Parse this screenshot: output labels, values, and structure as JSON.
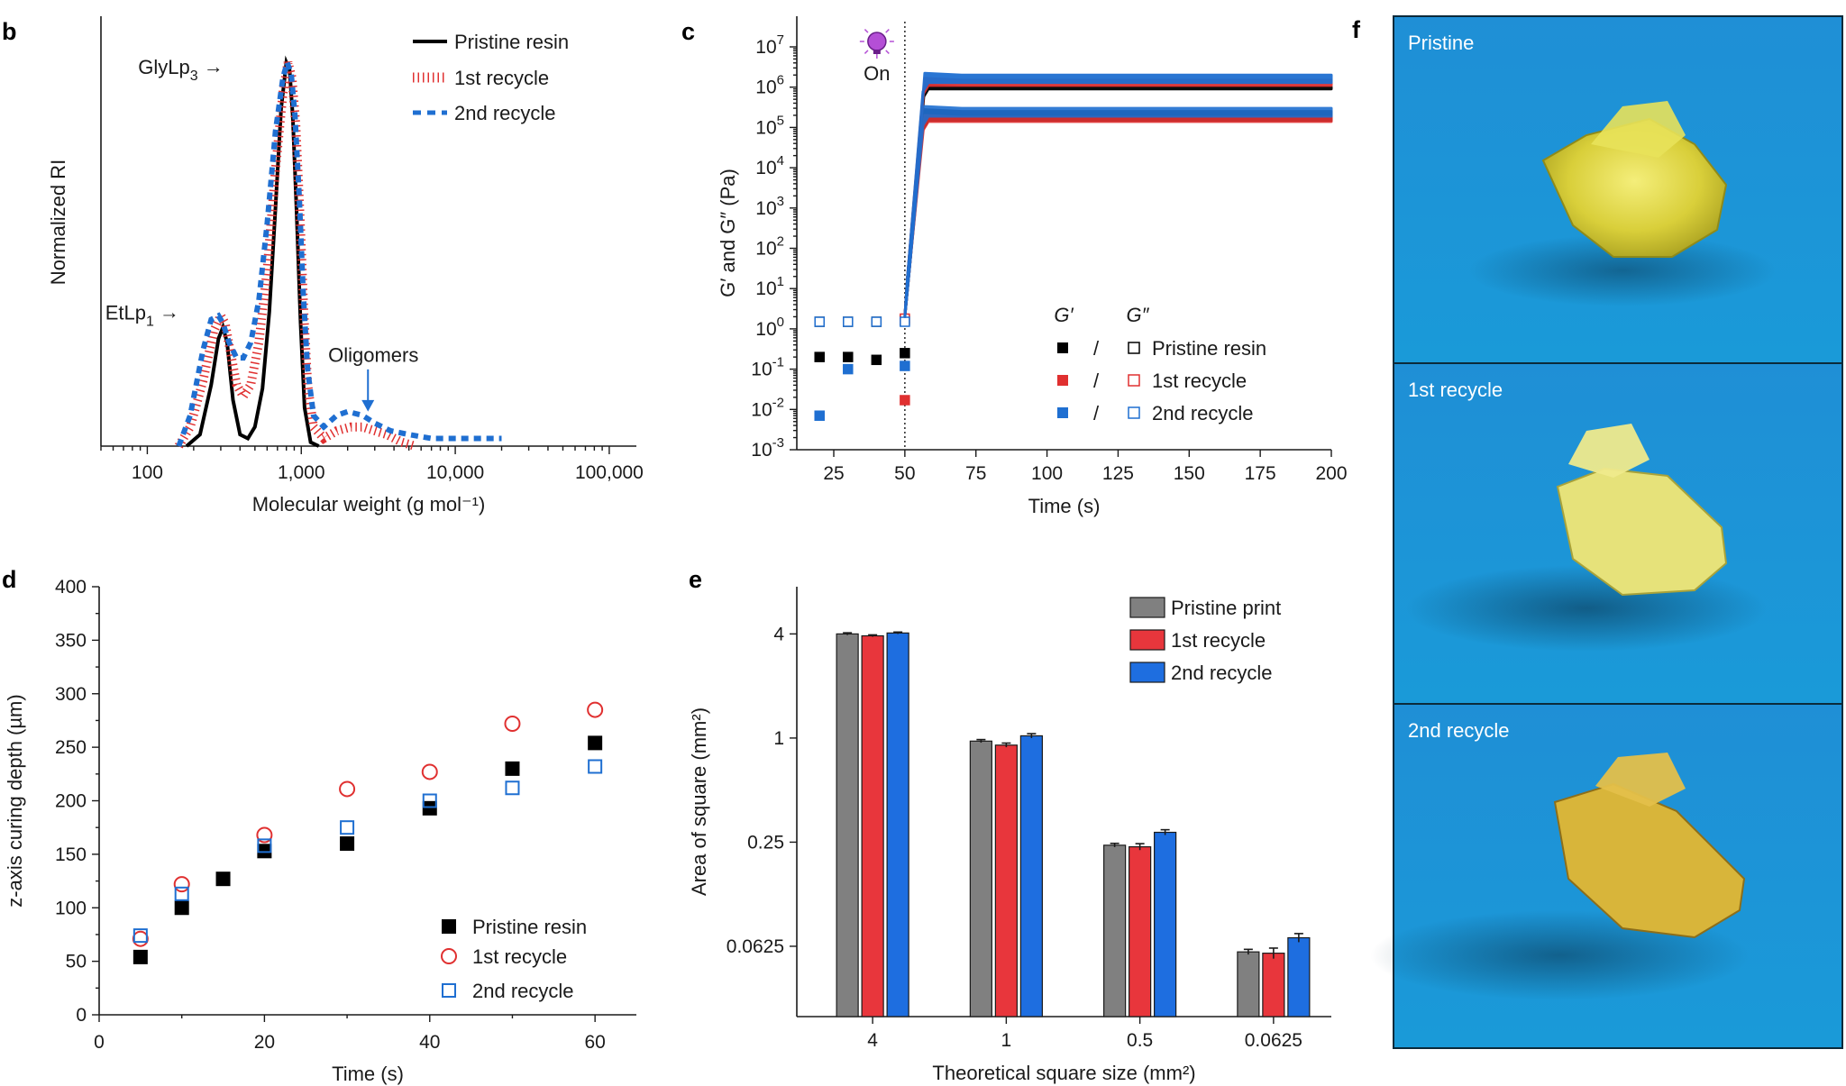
{
  "panels": {
    "b": "b",
    "c": "c",
    "d": "d",
    "e": "e",
    "f": "f"
  },
  "colors": {
    "pristine": "#000000",
    "recycle1": "#e03030",
    "recycle2": "#1f6fd1",
    "bar_gray": "#808080",
    "bar_red": "#e8363c",
    "bar_blue": "#1e6ee0"
  },
  "chart_data": [
    {
      "panel": "b",
      "type": "line",
      "title": "",
      "xlabel": "Molecular weight (g mol⁻¹)",
      "ylabel": "Normalized RI",
      "xscale": "log",
      "xlim": [
        50,
        150000
      ],
      "ylim": [
        0,
        1.05
      ],
      "xticks": [
        "100",
        "1,000",
        "10,000",
        "100,000"
      ],
      "xtick_values": [
        100,
        1000,
        10000,
        100000
      ],
      "series": [
        {
          "name": "Pristine resin",
          "style": "solid",
          "x": [
            180,
            220,
            260,
            290,
            310,
            330,
            360,
            400,
            450,
            500,
            560,
            620,
            680,
            740,
            800,
            840,
            880,
            930,
            990,
            1050,
            1150,
            1300
          ],
          "y": [
            0,
            0.03,
            0.16,
            0.28,
            0.31,
            0.27,
            0.12,
            0.03,
            0.02,
            0.05,
            0.15,
            0.35,
            0.62,
            0.88,
            1.0,
            0.98,
            0.86,
            0.62,
            0.32,
            0.1,
            0.01,
            0
          ]
        },
        {
          "name": "1st recycle",
          "style": "dotted",
          "x": [
            160,
            190,
            230,
            270,
            300,
            320,
            345,
            380,
            420,
            470,
            530,
            600,
            680,
            760,
            820,
            870,
            920,
            980,
            1040,
            1100,
            1200,
            1400,
            1700,
            2100,
            2500,
            3000,
            3600,
            4500,
            5500
          ],
          "y": [
            0,
            0.05,
            0.17,
            0.3,
            0.34,
            0.32,
            0.25,
            0.16,
            0.13,
            0.16,
            0.27,
            0.46,
            0.72,
            0.92,
            1.0,
            0.96,
            0.84,
            0.6,
            0.34,
            0.16,
            0.05,
            0.02,
            0.04,
            0.05,
            0.05,
            0.04,
            0.03,
            0.01,
            0
          ]
        },
        {
          "name": "2nd recycle",
          "style": "dashed",
          "x": [
            160,
            190,
            230,
            260,
            290,
            310,
            340,
            380,
            420,
            470,
            530,
            600,
            680,
            760,
            810,
            860,
            910,
            970,
            1030,
            1100,
            1200,
            1400,
            1700,
            2000,
            2500,
            3000,
            3800,
            5000,
            7000,
            10000,
            15000,
            20000
          ],
          "y": [
            0,
            0.08,
            0.25,
            0.33,
            0.34,
            0.32,
            0.27,
            0.23,
            0.23,
            0.27,
            0.38,
            0.58,
            0.82,
            0.96,
            1.0,
            0.97,
            0.86,
            0.65,
            0.4,
            0.2,
            0.08,
            0.05,
            0.08,
            0.09,
            0.08,
            0.06,
            0.04,
            0.03,
            0.02,
            0.02,
            0.02,
            0.02
          ]
        }
      ],
      "annotations": [
        {
          "text": "GlyLp",
          "sub": "3",
          "arrow": "→",
          "at_x": 800
        },
        {
          "text": "EtLp",
          "sub": "1",
          "arrow": "→",
          "at_x": 300
        },
        {
          "text": "Oligomers",
          "at_x": 2500
        }
      ],
      "legend": [
        "Pristine resin",
        "1st recycle",
        "2nd recycle"
      ],
      "legend_position": "top-right"
    },
    {
      "panel": "c",
      "type": "scatter",
      "xlabel": "Time (s)",
      "ylabel": "G′ and G″ (Pa)",
      "xlim": [
        12,
        200
      ],
      "yscale": "log",
      "ylim_exp": [
        -3,
        7
      ],
      "xticks": [
        "25",
        "50",
        "75",
        "100",
        "125",
        "150",
        "175",
        "200"
      ],
      "xtick_values": [
        25,
        50,
        75,
        100,
        125,
        150,
        175,
        200
      ],
      "yticks_exp": [
        -3,
        -2,
        -1,
        0,
        1,
        2,
        3,
        4,
        5,
        6,
        7
      ],
      "light_on_x": 50,
      "light_on_label": "On",
      "legend_header": {
        "gp": "G′",
        "gpp": "G″"
      },
      "legend": [
        {
          "label": "Pristine resin",
          "sep": "/"
        },
        {
          "label": "1st recycle",
          "sep": "/"
        },
        {
          "label": "2nd recycle",
          "sep": "/"
        }
      ],
      "series": [
        {
          "name": "Pristine resin G′",
          "marker": "filled",
          "x": [
            20,
            30,
            40,
            50
          ],
          "y": [
            0.2,
            0.2,
            0.17,
            0.25
          ],
          "plateau": 1000000,
          "plateau_min": 900000
        },
        {
          "name": "Pristine resin G″",
          "marker": "open",
          "x": [
            20,
            30,
            40,
            50
          ],
          "y": [
            1.5,
            1.5,
            1.5,
            1.6
          ],
          "plateau": 250000,
          "plateau_min": 150000
        },
        {
          "name": "1st recycle G′",
          "marker": "filled",
          "x": [
            50
          ],
          "y": [
            0.017
          ],
          "plateau": 1500000,
          "plateau_min": 1100000
        },
        {
          "name": "1st recycle G″",
          "marker": "open",
          "x": [
            50
          ],
          "y": [
            1.8
          ],
          "plateau": 180000,
          "plateau_min": 140000
        },
        {
          "name": "2nd recycle G′",
          "marker": "filled",
          "x": [
            20,
            30,
            50
          ],
          "y": [
            0.007,
            0.1,
            0.12
          ],
          "plateau": 2000000,
          "plateau_min": 1300000
        },
        {
          "name": "2nd recycle G″",
          "marker": "open",
          "x": [
            20,
            30,
            40,
            50
          ],
          "y": [
            1.5,
            1.5,
            1.5,
            1.5
          ],
          "plateau": 300000,
          "plateau_min": 190000
        }
      ]
    },
    {
      "panel": "d",
      "type": "scatter",
      "xlabel": "Time (s)",
      "ylabel": "z-axis curing depth (µm)",
      "xlim": [
        0,
        65
      ],
      "ylim": [
        0,
        400
      ],
      "xticks": [
        "0",
        "20",
        "40",
        "60"
      ],
      "xtick_values": [
        0,
        20,
        40,
        60
      ],
      "yticks": [
        "0",
        "50",
        "100",
        "150",
        "200",
        "250",
        "300",
        "350",
        "400"
      ],
      "ytick_values": [
        0,
        50,
        100,
        150,
        200,
        250,
        300,
        350,
        400
      ],
      "series": [
        {
          "name": "Pristine resin",
          "marker": "filled-square",
          "x": [
            5,
            10,
            15,
            20,
            30,
            40,
            50,
            60
          ],
          "y": [
            54,
            100,
            127,
            153,
            160,
            193,
            230,
            254
          ]
        },
        {
          "name": "1st recycle",
          "marker": "open-circle",
          "x": [
            5,
            10,
            20,
            30,
            40,
            50,
            60
          ],
          "y": [
            71,
            122,
            168,
            211,
            227,
            272,
            285
          ]
        },
        {
          "name": "2nd recycle",
          "marker": "open-square",
          "x": [
            5,
            10,
            20,
            30,
            40,
            50,
            60
          ],
          "y": [
            74,
            113,
            158,
            175,
            200,
            212,
            232
          ]
        }
      ],
      "legend": [
        "Pristine resin",
        "1st recycle",
        "2nd recycle"
      ],
      "legend_position": "bottom-right"
    },
    {
      "panel": "e",
      "type": "bar",
      "xlabel": "Theoretical square size (mm²)",
      "ylabel": "Area of square (mm²)",
      "yscale": "log2",
      "ylim": [
        0.0245,
        7.5
      ],
      "categories": [
        "4",
        "1",
        "0.5",
        "0.0625"
      ],
      "yticks": [
        "0.0625",
        "0.25",
        "1",
        "4"
      ],
      "ytick_values": [
        0.0625,
        0.25,
        1,
        4
      ],
      "series": [
        {
          "name": "Pristine print",
          "values": [
            4.0,
            0.96,
            0.24,
            0.058
          ],
          "err": [
            0.06,
            0.02,
            0.006,
            0.002
          ]
        },
        {
          "name": "1st recycle",
          "values": [
            3.9,
            0.91,
            0.235,
            0.057
          ],
          "err": [
            0.05,
            0.025,
            0.01,
            0.004
          ]
        },
        {
          "name": "2nd recycle",
          "values": [
            4.05,
            1.03,
            0.285,
            0.07
          ],
          "err": [
            0.05,
            0.03,
            0.01,
            0.004
          ]
        }
      ],
      "legend": [
        "Pristine print",
        "1st recycle",
        "2nd recycle"
      ],
      "legend_position": "top-right"
    }
  ],
  "photos": {
    "labels": [
      "Pristine",
      "1st recycle",
      "2nd recycle"
    ]
  }
}
